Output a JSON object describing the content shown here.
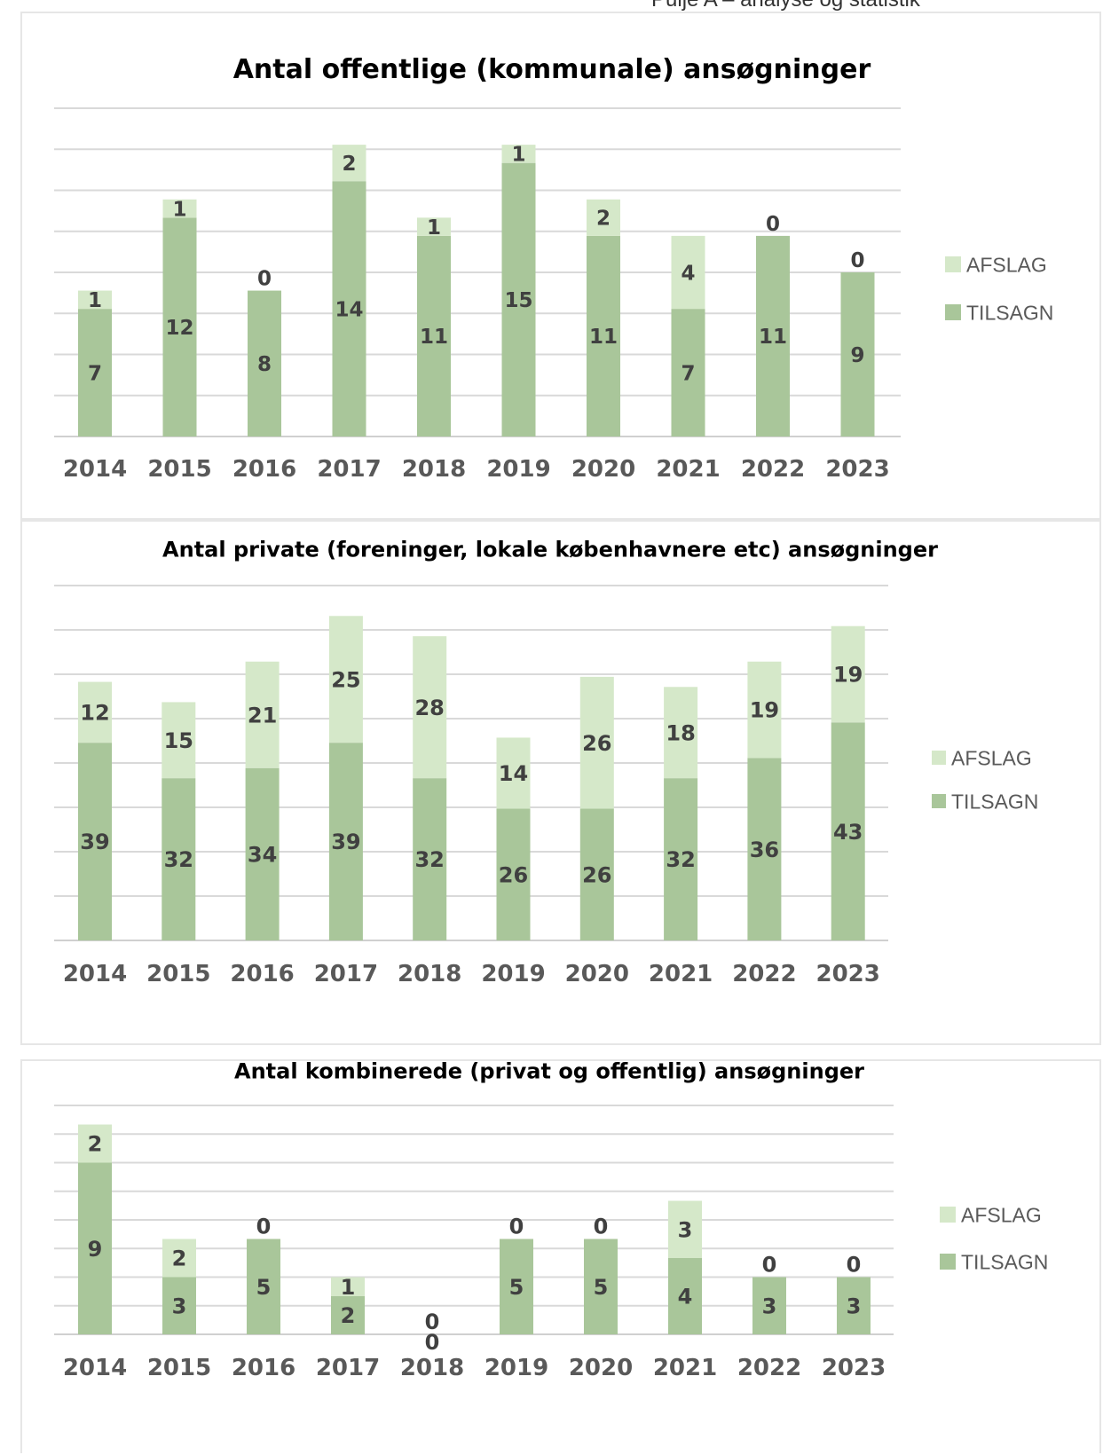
{
  "page_header": "Pulje A – analyse og statistik",
  "colors": {
    "tilsagn": "#a9c69a",
    "afslag": "#d5e8c9",
    "grid": "#d9d9d9",
    "tick_text": "#595959",
    "data_text": "#404040"
  },
  "chart_data": [
    {
      "type": "bar",
      "stacked": true,
      "title": "Antal offentlige (kommunale) ansøgninger",
      "categories": [
        "2014",
        "2015",
        "2016",
        "2017",
        "2018",
        "2019",
        "2020",
        "2021",
        "2022",
        "2023"
      ],
      "series": [
        {
          "name": "TILSAGN",
          "values": [
            7,
            12,
            8,
            14,
            11,
            15,
            11,
            7,
            11,
            9
          ]
        },
        {
          "name": "AFSLAG",
          "values": [
            1,
            1,
            0,
            2,
            1,
            1,
            2,
            4,
            0,
            0
          ]
        }
      ],
      "ylim": [
        0,
        18
      ],
      "grid": true,
      "legend": "right",
      "xlabel": "",
      "ylabel": ""
    },
    {
      "type": "bar",
      "stacked": true,
      "title": "Antal private (foreninger, lokale københavnere etc) ansøgninger",
      "categories": [
        "2014",
        "2015",
        "2016",
        "2017",
        "2018",
        "2019",
        "2020",
        "2021",
        "2022",
        "2023"
      ],
      "series": [
        {
          "name": "TILSAGN",
          "values": [
            39,
            32,
            34,
            39,
            32,
            26,
            26,
            32,
            36,
            43
          ]
        },
        {
          "name": "AFSLAG",
          "values": [
            12,
            15,
            21,
            25,
            28,
            14,
            26,
            18,
            19,
            19
          ]
        }
      ],
      "ylim": [
        0,
        70
      ],
      "grid": true,
      "legend": "right",
      "xlabel": "",
      "ylabel": ""
    },
    {
      "type": "bar",
      "stacked": true,
      "title": "Antal kombinerede (privat og offentlig) ansøgninger",
      "categories": [
        "2014",
        "2015",
        "2016",
        "2017",
        "2018",
        "2019",
        "2020",
        "2021",
        "2022",
        "2023"
      ],
      "series": [
        {
          "name": "TILSAGN",
          "values": [
            9,
            3,
            5,
            2,
            0,
            5,
            5,
            4,
            3,
            3
          ]
        },
        {
          "name": "AFSLAG",
          "values": [
            2,
            2,
            0,
            1,
            0,
            0,
            0,
            3,
            0,
            0
          ]
        }
      ],
      "ylim": [
        0,
        12
      ],
      "grid": true,
      "legend": "right",
      "xlabel": "",
      "ylabel": ""
    }
  ]
}
